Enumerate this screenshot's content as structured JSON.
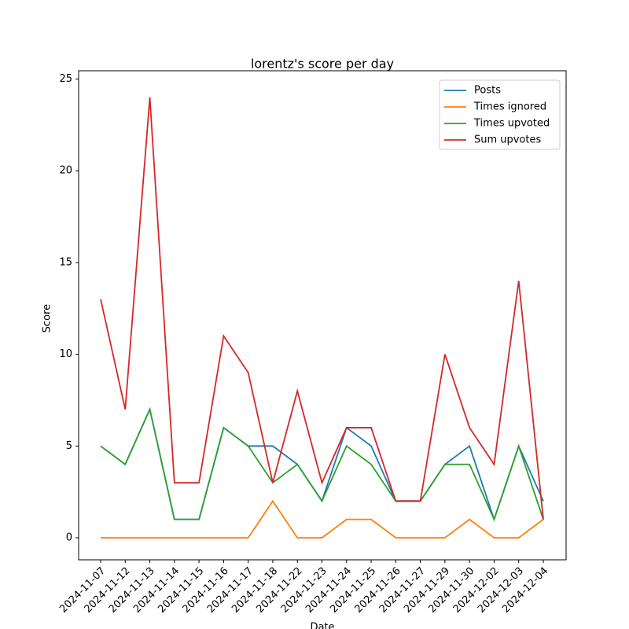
{
  "chart_data": {
    "type": "line",
    "title": "lorentz's score per day",
    "x_label": "Date",
    "y_label": "Score",
    "categories": [
      "2024-11-07",
      "2024-11-12",
      "2024-11-13",
      "2024-11-14",
      "2024-11-15",
      "2024-11-16",
      "2024-11-17",
      "2024-11-18",
      "2024-11-22",
      "2024-11-23",
      "2024-11-24",
      "2024-11-25",
      "2024-11-26",
      "2024-11-27",
      "2024-11-29",
      "2024-11-30",
      "2024-12-02",
      "2024-12-03",
      "2024-12-04"
    ],
    "series": [
      {
        "name": "Posts",
        "color": "#1f77b4",
        "values": [
          5,
          4,
          7,
          1,
          1,
          6,
          5,
          5,
          4,
          2,
          6,
          5,
          2,
          2,
          4,
          5,
          1,
          5,
          2
        ]
      },
      {
        "name": "Times ignored",
        "color": "#ff7f0e",
        "values": [
          0,
          0,
          0,
          0,
          0,
          0,
          0,
          2,
          0,
          0,
          1,
          1,
          0,
          0,
          0,
          1,
          0,
          0,
          1
        ]
      },
      {
        "name": "Times upvoted",
        "color": "#2ca02c",
        "values": [
          5,
          4,
          7,
          1,
          1,
          6,
          5,
          3,
          4,
          2,
          5,
          4,
          2,
          2,
          4,
          4,
          1,
          5,
          1
        ]
      },
      {
        "name": "Sum upvotes",
        "color": "#d62728",
        "values": [
          13,
          7,
          24,
          3,
          3,
          11,
          9,
          3,
          8,
          3,
          6,
          6,
          2,
          2,
          10,
          6,
          4,
          14,
          1
        ]
      }
    ],
    "ylim": [
      -1.2,
      25.45
    ],
    "yticks": [
      0,
      5,
      10,
      15,
      20,
      25
    ],
    "legend": "upper right"
  }
}
